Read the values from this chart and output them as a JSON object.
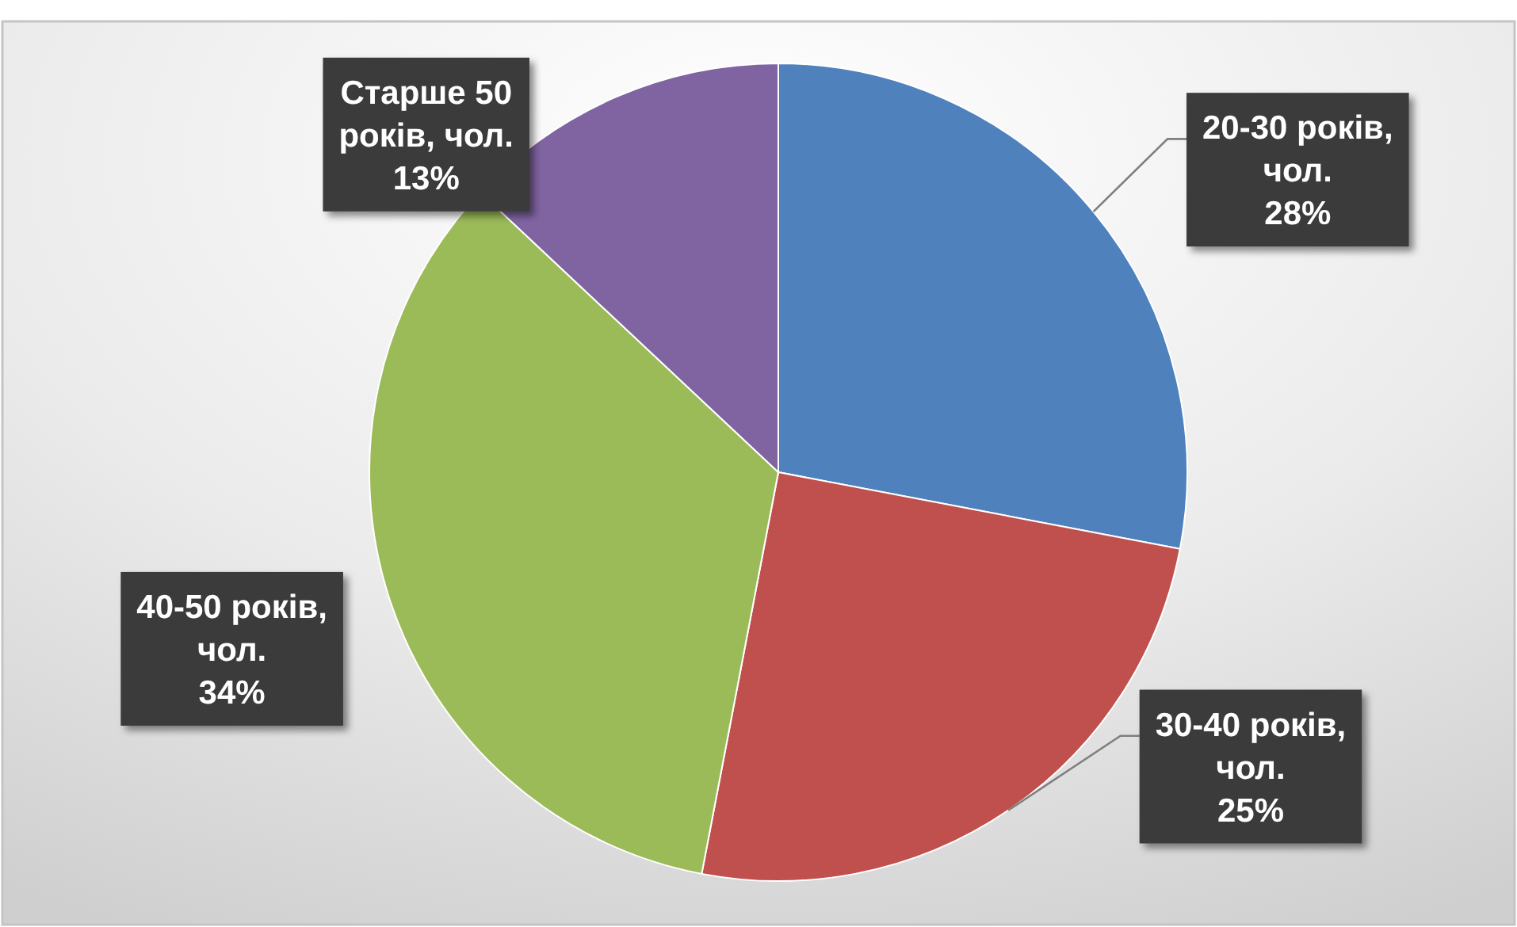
{
  "chart_data": {
    "type": "pie",
    "categories": [
      "20-30 років, чол.",
      "30-40 років, чол.",
      "40-50 років, чол.",
      "Старше 50 років, чол."
    ],
    "values": [
      28,
      25,
      34,
      13
    ],
    "colors": [
      "#4f81bd",
      "#c0504d",
      "#9bbb59",
      "#8064a2"
    ],
    "value_labels": [
      "28%",
      "25%",
      "34%",
      "13%"
    ]
  }
}
